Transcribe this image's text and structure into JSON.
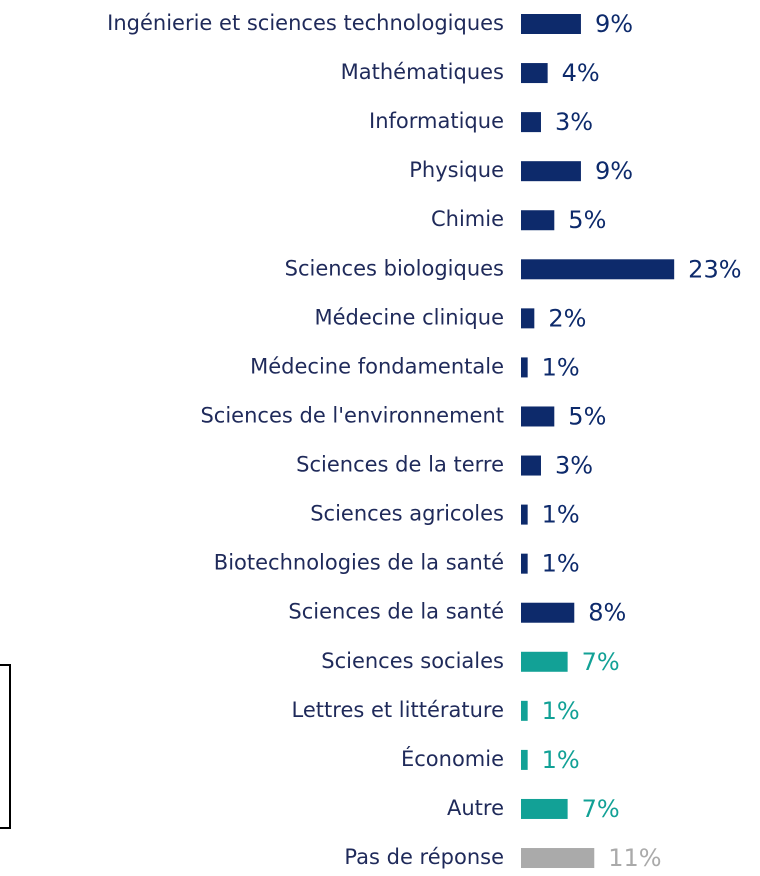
{
  "chart_data": {
    "type": "bar",
    "orientation": "horizontal",
    "categories": [
      "Ingénierie et sciences technologiques",
      "Mathématiques",
      "Informatique",
      "Physique",
      "Chimie",
      "Sciences biologiques",
      "Médecine clinique",
      "Médecine fondamentale",
      "Sciences de l'environnement",
      "Sciences de la terre",
      "Sciences agricoles",
      "Biotechnologies de la santé",
      "Sciences de la santé",
      "Sciences sociales",
      "Lettres et littérature",
      "Économie",
      "Autre",
      "Pas de réponse"
    ],
    "values": [
      9,
      4,
      3,
      9,
      5,
      23,
      2,
      1,
      5,
      3,
      1,
      1,
      8,
      7,
      1,
      1,
      7,
      11
    ],
    "value_labels": [
      "9%",
      "4%",
      "3%",
      "9%",
      "5%",
      "23%",
      "2%",
      "1%",
      "5%",
      "3%",
      "1%",
      "1%",
      "8%",
      "7%",
      "1%",
      "1%",
      "7%",
      "11%"
    ],
    "colors": [
      "#0d2a6b",
      "#0d2a6b",
      "#0d2a6b",
      "#0d2a6b",
      "#0d2a6b",
      "#0d2a6b",
      "#0d2a6b",
      "#0d2a6b",
      "#0d2a6b",
      "#0d2a6b",
      "#0d2a6b",
      "#0d2a6b",
      "#0d2a6b",
      "#12a196",
      "#12a196",
      "#12a196",
      "#12a196",
      "#aaaaaa"
    ]
  }
}
